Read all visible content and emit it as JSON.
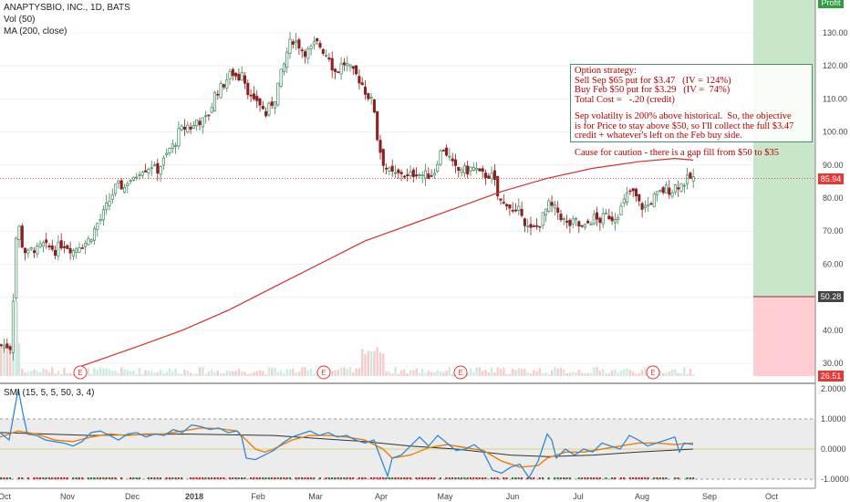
{
  "legend": {
    "title": "ANAPTYSBIO, INC., 1D, BATS",
    "vol": "Vol (50)",
    "ma": "MA (200, close)",
    "smi": "SMI (15, 5, 5, 50, 3, 4)"
  },
  "note": {
    "lines": [
      "Option strategy:",
      "Sell Sep $65 put for $3.47   (IV = 124%)",
      "Buy Feb $50 put for $3.29   (IV =  74%)",
      "Total Cost =   -.20 (credit)",
      "",
      "Sep volatilty is 200% above historical.  So, the objective",
      "is for Price to stay above $50, so I'll collect the full $3.47",
      "credit + whatever's left on the Feb buy side.",
      "",
      "Cause for caution - there is a gap fill from $50 to $35"
    ]
  },
  "tags": {
    "profit_label": "Profit",
    "price_tag": "85.94",
    "strike_tag": "50.28",
    "loss_tag": "26.51"
  },
  "colors": {
    "up": "#26a69a",
    "down": "#ef5350",
    "candle_up": "#3a8a5a",
    "candle_down": "#8b2020",
    "ma": "#d32f2f",
    "smi": "#2e8ad8",
    "signal": "#f07d00",
    "long": "#333333",
    "profit_zone": "#c8e6c9",
    "loss_zone": "#ffcdd2",
    "price_line": "#e05050"
  },
  "chart_data": {
    "type": "candlestick",
    "symbol": "ANAPTYSBIO, INC.",
    "interval": "1D",
    "price_axis": {
      "ticks": [
        30,
        40,
        50,
        60,
        70,
        80,
        90,
        100,
        110,
        120,
        130
      ],
      "ylim": [
        26,
        142
      ]
    },
    "smi_axis": {
      "ticks": [
        "2.0000",
        "1.0000",
        "0.0000",
        "-1.0000"
      ],
      "ylim": [
        -1.1,
        2.1
      ]
    },
    "time_axis": {
      "labels": [
        "Oct",
        "Nov",
        "Dec",
        "2018",
        "Feb",
        "Mar",
        "Apr",
        "May",
        "Jun",
        "Jul",
        "Aug",
        "Sep",
        "Oct"
      ]
    },
    "current_price": 85.94,
    "strike_level": 50.28,
    "loss_level": 26.51,
    "earnings_markers": [
      "Nov",
      "Mar",
      "May",
      "Aug"
    ],
    "earnings_label": "E",
    "price_path": [
      [
        0,
        35.5
      ],
      [
        2,
        35.2
      ],
      [
        6,
        35.4
      ],
      [
        9,
        35.0
      ],
      [
        11,
        34.8
      ],
      [
        15,
        62
      ],
      [
        17,
        70
      ],
      [
        20,
        71
      ],
      [
        23,
        66
      ],
      [
        26,
        64
      ],
      [
        30,
        63
      ],
      [
        35,
        65
      ],
      [
        40,
        64
      ],
      [
        45,
        66
      ],
      [
        50,
        65
      ],
      [
        55,
        65
      ],
      [
        60,
        64
      ],
      [
        65,
        66
      ],
      [
        70,
        66
      ],
      [
        75,
        65
      ],
      [
        80,
        64
      ],
      [
        85,
        66
      ],
      [
        90,
        66
      ],
      [
        95,
        67
      ],
      [
        100,
        69
      ],
      [
        105,
        72
      ],
      [
        110,
        74
      ],
      [
        115,
        77
      ],
      [
        120,
        80
      ],
      [
        125,
        83
      ],
      [
        130,
        84
      ],
      [
        135,
        83
      ],
      [
        140,
        86
      ],
      [
        145,
        85
      ],
      [
        150,
        88
      ],
      [
        155,
        89
      ],
      [
        160,
        89
      ],
      [
        165,
        90
      ],
      [
        170,
        88
      ],
      [
        175,
        90
      ],
      [
        180,
        92
      ],
      [
        185,
        95
      ],
      [
        190,
        96
      ],
      [
        195,
        100
      ],
      [
        200,
        101
      ],
      [
        205,
        102
      ],
      [
        210,
        101
      ],
      [
        215,
        104
      ],
      [
        220,
        103
      ],
      [
        225,
        104
      ],
      [
        230,
        107
      ],
      [
        235,
        112
      ],
      [
        240,
        113
      ],
      [
        245,
        115
      ],
      [
        250,
        117
      ],
      [
        255,
        118
      ],
      [
        260,
        116
      ],
      [
        265,
        120
      ],
      [
        268,
        114
      ],
      [
        272,
        112
      ],
      [
        276,
        108
      ],
      [
        280,
        110
      ],
      [
        285,
        108
      ],
      [
        290,
        105
      ],
      [
        295,
        108
      ],
      [
        300,
        110
      ],
      [
        305,
        116
      ],
      [
        310,
        120
      ],
      [
        315,
        126
      ],
      [
        320,
        128
      ],
      [
        325,
        127
      ],
      [
        330,
        125
      ],
      [
        335,
        124
      ],
      [
        340,
        125
      ],
      [
        345,
        127
      ],
      [
        350,
        126
      ],
      [
        355,
        124
      ],
      [
        360,
        123
      ],
      [
        365,
        118
      ],
      [
        370,
        119
      ],
      [
        375,
        121
      ],
      [
        380,
        120
      ],
      [
        385,
        118
      ],
      [
        390,
        117
      ],
      [
        395,
        115
      ],
      [
        400,
        112
      ],
      [
        405,
        110
      ],
      [
        410,
        106
      ],
      [
        412,
        99
      ],
      [
        416,
        94
      ],
      [
        420,
        90
      ],
      [
        425,
        88
      ],
      [
        430,
        87
      ],
      [
        435,
        87
      ],
      [
        440,
        88
      ],
      [
        445,
        86
      ],
      [
        450,
        87
      ],
      [
        455,
        88
      ],
      [
        460,
        87
      ],
      [
        465,
        87
      ],
      [
        470,
        87
      ],
      [
        475,
        88
      ],
      [
        480,
        93
      ],
      [
        485,
        95
      ],
      [
        490,
        93
      ],
      [
        495,
        90
      ],
      [
        500,
        88
      ],
      [
        505,
        89
      ],
      [
        510,
        88
      ],
      [
        515,
        89
      ],
      [
        520,
        89
      ],
      [
        525,
        87
      ],
      [
        530,
        87
      ],
      [
        535,
        87
      ],
      [
        540,
        86
      ],
      [
        545,
        80
      ],
      [
        550,
        78
      ],
      [
        555,
        79
      ],
      [
        560,
        76
      ],
      [
        565,
        75
      ],
      [
        570,
        77
      ],
      [
        575,
        72
      ],
      [
        580,
        70
      ],
      [
        585,
        71
      ],
      [
        590,
        72
      ],
      [
        595,
        75
      ],
      [
        600,
        78
      ],
      [
        605,
        77
      ],
      [
        610,
        76
      ],
      [
        615,
        74
      ],
      [
        620,
        72
      ],
      [
        625,
        72
      ],
      [
        630,
        73
      ],
      [
        635,
        71
      ],
      [
        640,
        71
      ],
      [
        645,
        73
      ],
      [
        650,
        74
      ],
      [
        655,
        73
      ],
      [
        660,
        74
      ],
      [
        665,
        75
      ],
      [
        670,
        74
      ],
      [
        675,
        75
      ],
      [
        680,
        77
      ],
      [
        685,
        80
      ],
      [
        690,
        82
      ],
      [
        695,
        81
      ],
      [
        700,
        78
      ],
      [
        705,
        77
      ],
      [
        710,
        78
      ],
      [
        715,
        80
      ],
      [
        720,
        81
      ],
      [
        725,
        82
      ],
      [
        730,
        83
      ],
      [
        735,
        82
      ],
      [
        740,
        84
      ],
      [
        745,
        84
      ],
      [
        750,
        85
      ],
      [
        755,
        86
      ],
      [
        760,
        86
      ]
    ],
    "ma_path": [
      [
        88,
        29
      ],
      [
        150,
        35
      ],
      [
        200,
        40
      ],
      [
        250,
        46
      ],
      [
        300,
        53
      ],
      [
        350,
        60
      ],
      [
        400,
        67
      ],
      [
        450,
        72
      ],
      [
        500,
        77
      ],
      [
        550,
        82
      ],
      [
        600,
        86
      ],
      [
        650,
        89
      ],
      [
        700,
        91
      ],
      [
        740,
        92
      ],
      [
        760,
        91.5
      ]
    ],
    "smi_path": [
      [
        0,
        0.55
      ],
      [
        10,
        0.3
      ],
      [
        20,
        2.0
      ],
      [
        25,
        1.2
      ],
      [
        30,
        0.5
      ],
      [
        40,
        0.45
      ],
      [
        50,
        0.3
      ],
      [
        60,
        0.25
      ],
      [
        70,
        0.2
      ],
      [
        80,
        0.1
      ],
      [
        90,
        0.25
      ],
      [
        100,
        0.55
      ],
      [
        110,
        0.6
      ],
      [
        120,
        0.45
      ],
      [
        130,
        0.3
      ],
      [
        140,
        0.5
      ],
      [
        150,
        0.55
      ],
      [
        160,
        0.4
      ],
      [
        170,
        0.5
      ],
      [
        180,
        0.45
      ],
      [
        190,
        0.65
      ],
      [
        200,
        0.55
      ],
      [
        210,
        0.8
      ],
      [
        220,
        0.75
      ],
      [
        230,
        0.65
      ],
      [
        240,
        0.7
      ],
      [
        250,
        0.55
      ],
      [
        260,
        0.6
      ],
      [
        265,
        0.4
      ],
      [
        270,
        -0.3
      ],
      [
        280,
        -0.35
      ],
      [
        290,
        -0.2
      ],
      [
        300,
        -0.05
      ],
      [
        310,
        0.2
      ],
      [
        320,
        0.4
      ],
      [
        330,
        0.5
      ],
      [
        340,
        0.6
      ],
      [
        350,
        0.45
      ],
      [
        360,
        0.55
      ],
      [
        370,
        0.4
      ],
      [
        380,
        0.45
      ],
      [
        390,
        0.3
      ],
      [
        400,
        0.2
      ],
      [
        410,
        0.3
      ],
      [
        420,
        -0.5
      ],
      [
        425,
        -0.9
      ],
      [
        430,
        -0.3
      ],
      [
        440,
        -0.2
      ],
      [
        450,
        0.1
      ],
      [
        460,
        0.4
      ],
      [
        470,
        0.1
      ],
      [
        480,
        0.45
      ],
      [
        490,
        0.2
      ],
      [
        500,
        -0.05
      ],
      [
        510,
        0.0
      ],
      [
        520,
        0.15
      ],
      [
        530,
        -0.1
      ],
      [
        540,
        -0.7
      ],
      [
        550,
        -0.8
      ],
      [
        560,
        -0.6
      ],
      [
        570,
        -0.5
      ],
      [
        580,
        -0.95
      ],
      [
        590,
        -0.4
      ],
      [
        600,
        0.5
      ],
      [
        605,
        0.3
      ],
      [
        610,
        -0.3
      ],
      [
        620,
        0.0
      ],
      [
        630,
        -0.2
      ],
      [
        640,
        0.0
      ],
      [
        650,
        -0.1
      ],
      [
        660,
        0.2
      ],
      [
        670,
        0.1
      ],
      [
        680,
        0.0
      ],
      [
        690,
        0.45
      ],
      [
        700,
        0.3
      ],
      [
        710,
        0.1
      ],
      [
        720,
        0.2
      ],
      [
        730,
        0.3
      ],
      [
        740,
        0.4
      ],
      [
        745,
        -0.1
      ],
      [
        750,
        0.2
      ],
      [
        760,
        0.15
      ]
    ],
    "signal_path": [
      [
        0,
        0.4
      ],
      [
        20,
        0.6
      ],
      [
        40,
        0.5
      ],
      [
        60,
        0.3
      ],
      [
        80,
        0.25
      ],
      [
        100,
        0.4
      ],
      [
        120,
        0.5
      ],
      [
        140,
        0.45
      ],
      [
        160,
        0.5
      ],
      [
        180,
        0.5
      ],
      [
        200,
        0.6
      ],
      [
        220,
        0.7
      ],
      [
        240,
        0.68
      ],
      [
        260,
        0.6
      ],
      [
        270,
        0.3
      ],
      [
        280,
        0.0
      ],
      [
        290,
        -0.1
      ],
      [
        300,
        0.0
      ],
      [
        320,
        0.3
      ],
      [
        340,
        0.45
      ],
      [
        360,
        0.45
      ],
      [
        380,
        0.4
      ],
      [
        400,
        0.3
      ],
      [
        420,
        0.0
      ],
      [
        430,
        -0.3
      ],
      [
        450,
        -0.2
      ],
      [
        470,
        0.05
      ],
      [
        490,
        0.15
      ],
      [
        510,
        0.05
      ],
      [
        530,
        -0.05
      ],
      [
        550,
        -0.4
      ],
      [
        570,
        -0.6
      ],
      [
        590,
        -0.55
      ],
      [
        600,
        -0.3
      ],
      [
        620,
        -0.1
      ],
      [
        640,
        -0.1
      ],
      [
        660,
        0.0
      ],
      [
        680,
        0.1
      ],
      [
        700,
        0.2
      ],
      [
        720,
        0.2
      ],
      [
        740,
        0.15
      ],
      [
        760,
        0.2
      ]
    ],
    "long_path": [
      [
        0,
        0.55
      ],
      [
        100,
        0.45
      ],
      [
        200,
        0.5
      ],
      [
        300,
        0.45
      ],
      [
        400,
        0.25
      ],
      [
        450,
        0.1
      ],
      [
        500,
        0.0
      ],
      [
        560,
        -0.2
      ],
      [
        600,
        -0.25
      ],
      [
        650,
        -0.2
      ],
      [
        700,
        -0.1
      ],
      [
        760,
        0.0
      ]
    ]
  }
}
